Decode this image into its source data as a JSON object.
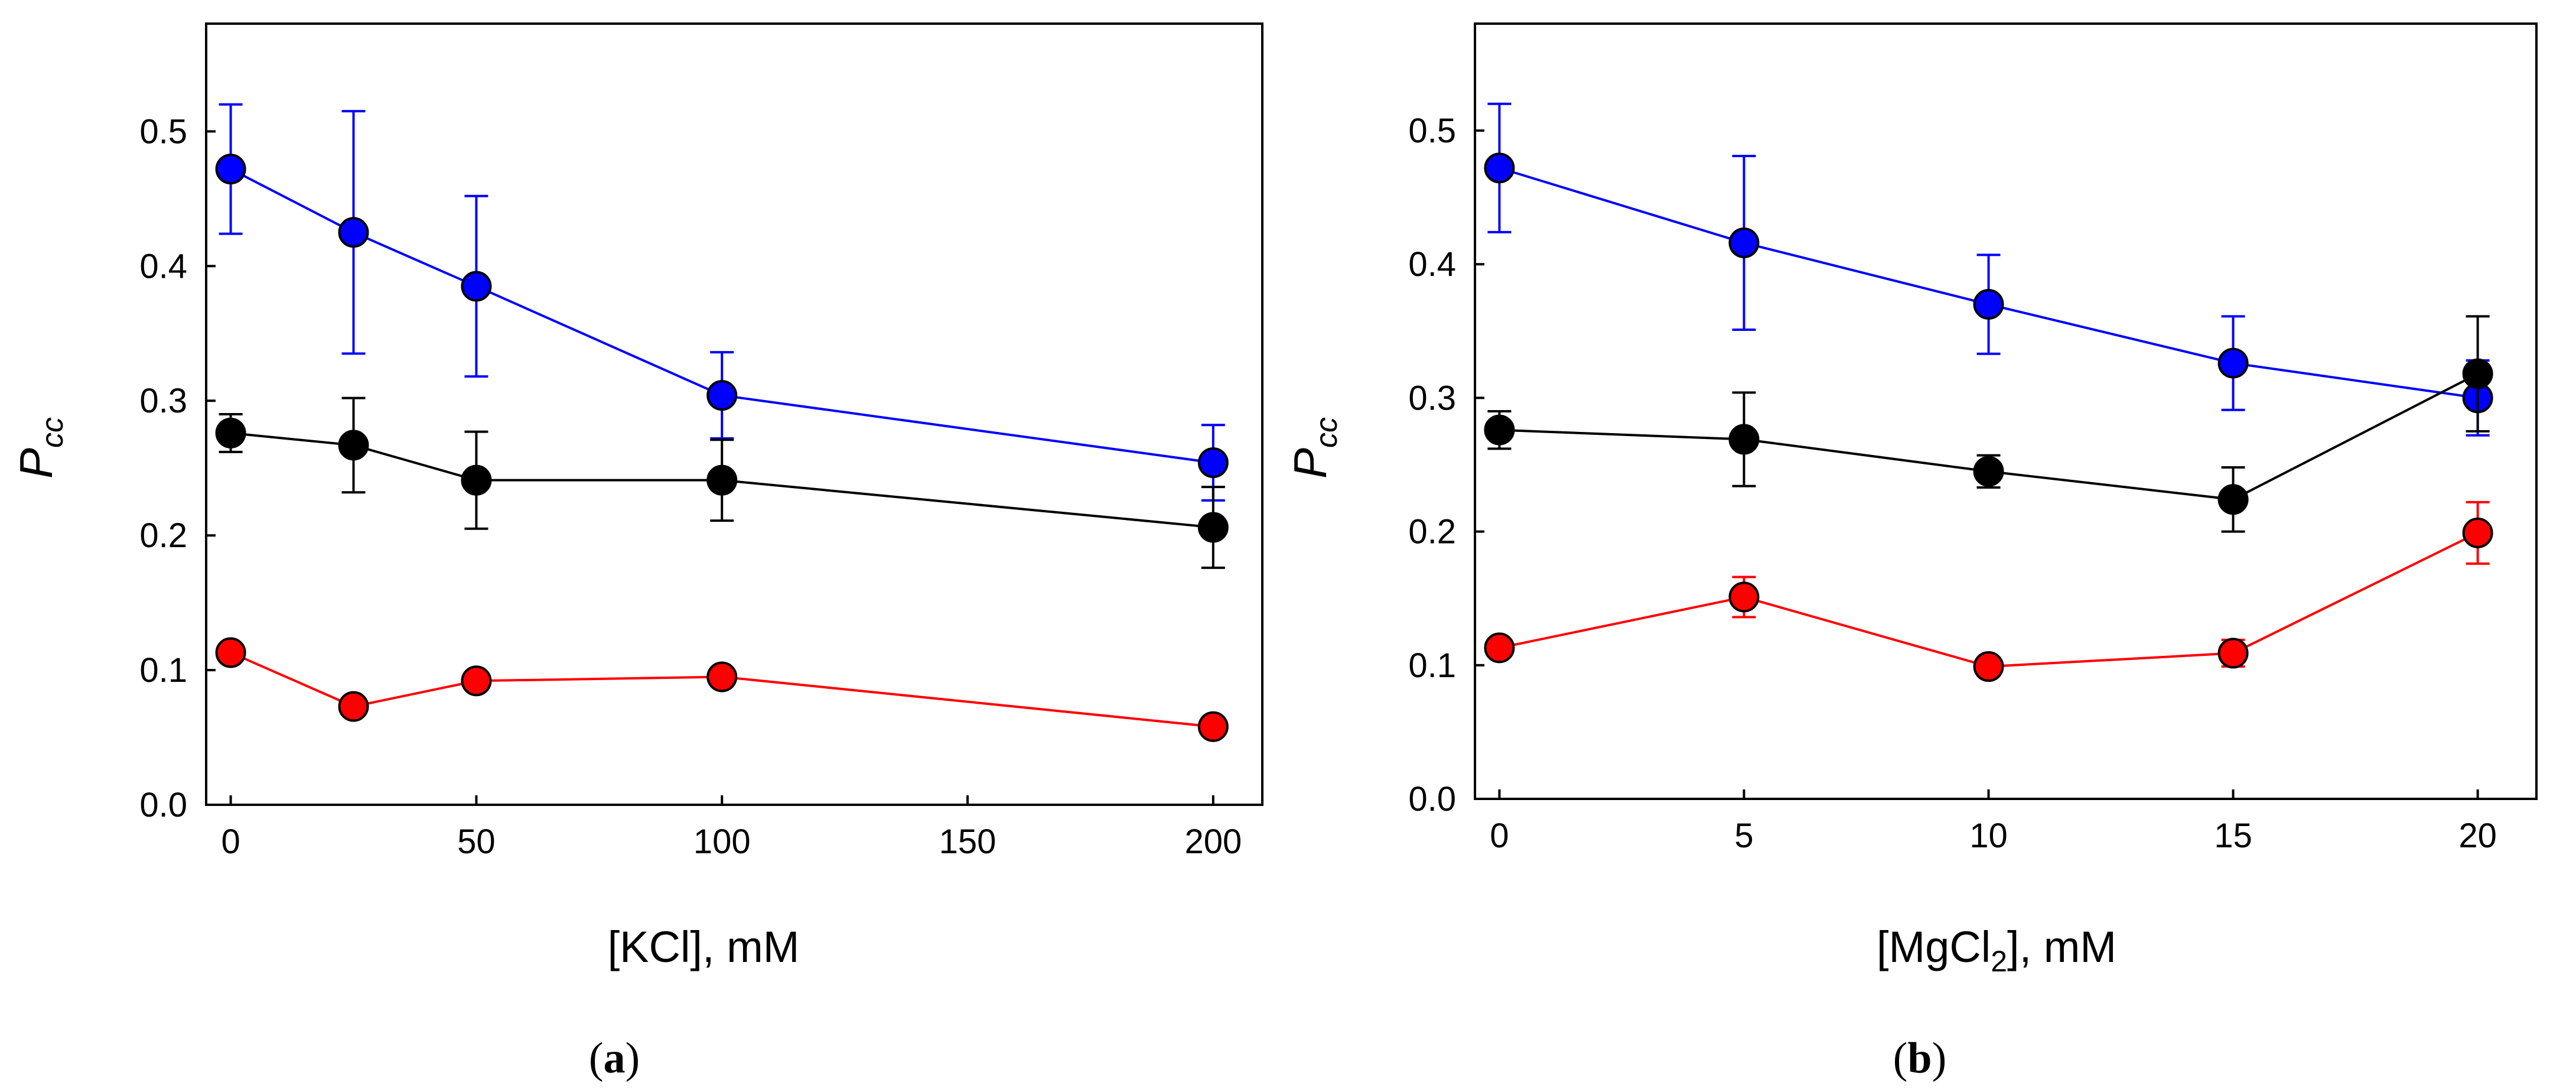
{
  "chart_data": [
    {
      "type": "scatter",
      "panel": "a",
      "caption_open": "(",
      "caption_letter": "a",
      "caption_close": ")",
      "xlabel": "[KCl], mM",
      "xlabel_main": "[KCl], mM",
      "xlabel_sub": "",
      "xlabel_tail": "",
      "ylabel": "P",
      "ylabel_sub": "cc",
      "xlim": [
        -5,
        210
      ],
      "ylim": [
        0.0,
        0.58
      ],
      "xticks": [
        0,
        50,
        100,
        150,
        200
      ],
      "xtick_labels": [
        "0",
        "50",
        "100",
        "150",
        "200"
      ],
      "yticks": [
        0.0,
        0.1,
        0.2,
        0.3,
        0.4,
        0.5
      ],
      "ytick_labels": [
        "0.0",
        "0.1",
        "0.2",
        "0.3",
        "0.4",
        "0.5"
      ],
      "series": [
        {
          "name": "blue",
          "color": "#0000ff",
          "x": [
            0,
            25,
            50,
            100,
            200
          ],
          "y": [
            0.472,
            0.425,
            0.385,
            0.304,
            0.254
          ],
          "err": [
            0.048,
            0.09,
            0.067,
            0.032,
            0.028
          ]
        },
        {
          "name": "black",
          "color": "#000000",
          "x": [
            0,
            25,
            50,
            100,
            200
          ],
          "y": [
            0.276,
            0.267,
            0.241,
            0.241,
            0.206
          ],
          "err": [
            0.014,
            0.035,
            0.036,
            0.03,
            0.03
          ]
        },
        {
          "name": "red",
          "color": "#ff0000",
          "x": [
            0,
            25,
            50,
            100,
            200
          ],
          "y": [
            0.113,
            0.073,
            0.092,
            0.095,
            0.058
          ],
          "err": [
            0.0,
            0.0,
            0.0,
            0.0,
            0.0
          ]
        }
      ]
    },
    {
      "type": "scatter",
      "panel": "b",
      "caption_open": "(",
      "caption_letter": "b",
      "caption_close": ")",
      "xlabel": "[MgCl2], mM",
      "xlabel_main": "[MgCl",
      "xlabel_sub": "2",
      "xlabel_tail": "], mM",
      "ylabel": "P",
      "ylabel_sub": "cc",
      "xlim": [
        -0.5,
        21.2
      ],
      "ylim": [
        0.0,
        0.58
      ],
      "xticks": [
        0,
        5,
        10,
        15,
        20
      ],
      "xtick_labels": [
        "0",
        "5",
        "10",
        "15",
        "20"
      ],
      "yticks": [
        0.0,
        0.1,
        0.2,
        0.3,
        0.4,
        0.5
      ],
      "ytick_labels": [
        "0.0",
        "0.1",
        "0.2",
        "0.3",
        "0.4",
        "0.5"
      ],
      "series": [
        {
          "name": "blue",
          "color": "#0000ff",
          "x": [
            0,
            5,
            10,
            15,
            20
          ],
          "y": [
            0.472,
            0.416,
            0.37,
            0.326,
            0.3
          ],
          "err": [
            0.048,
            0.065,
            0.037,
            0.035,
            0.028
          ]
        },
        {
          "name": "black",
          "color": "#000000",
          "x": [
            0,
            5,
            10,
            15,
            20
          ],
          "y": [
            0.276,
            0.269,
            0.245,
            0.224,
            0.318
          ],
          "err": [
            0.014,
            0.035,
            0.012,
            0.024,
            0.043
          ]
        },
        {
          "name": "red",
          "color": "#ff0000",
          "x": [
            0,
            5,
            10,
            15,
            20
          ],
          "y": [
            0.113,
            0.151,
            0.099,
            0.109,
            0.199
          ],
          "err": [
            0.0,
            0.015,
            0.0,
            0.01,
            0.023
          ]
        }
      ]
    }
  ]
}
